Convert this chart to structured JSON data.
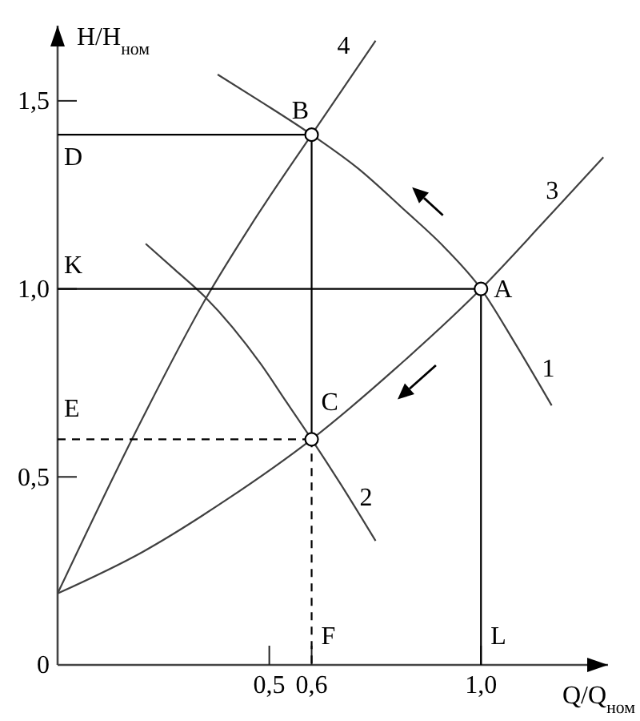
{
  "chart_data": {
    "type": "line",
    "xlabel": "Q/Q$_{ном}$",
    "ylabel": "H/H$_{ном}$",
    "xlim": [
      0,
      1.3
    ],
    "ylim": [
      0,
      1.7
    ],
    "xticks": [
      {
        "value": 0.5,
        "label": "0,5"
      },
      {
        "value": 0.6,
        "label": "0,6"
      },
      {
        "value": 1.0,
        "label": "1,0"
      }
    ],
    "yticks": [
      0,
      {
        "value": 0.5,
        "label": "0,5"
      },
      {
        "value": 1.0,
        "label": "1,0"
      },
      {
        "value": 1.5,
        "label": "1,5"
      }
    ],
    "series": [
      {
        "name": "1",
        "type": "line",
        "color": "#404040",
        "x": [
          0.378,
          0.477,
          0.6,
          0.71,
          0.819,
          0.914,
          1.0,
          1.078,
          1.167
        ],
        "values": [
          1.57,
          1.5,
          1.41,
          1.32,
          1.21,
          1.11,
          1.0,
          0.86,
          0.69
        ]
      },
      {
        "name": "2",
        "type": "line",
        "color": "#404040",
        "x": [
          0.208,
          0.278,
          0.347,
          0.48,
          0.54,
          0.6,
          0.669,
          0.751
        ],
        "values": [
          1.12,
          1.05,
          0.98,
          0.8,
          0.7,
          0.6,
          0.48,
          0.33
        ]
      },
      {
        "name": "3",
        "type": "line",
        "color": "#404040",
        "x": [
          0,
          0.2,
          0.4,
          0.6,
          0.8,
          1.0,
          1.15,
          1.289
        ],
        "values": [
          0.19,
          0.3,
          0.44,
          0.6,
          0.79,
          1.0,
          1.18,
          1.35
        ]
      },
      {
        "name": "4",
        "type": "line",
        "color": "#404040",
        "x": [
          0,
          0.18,
          0.353,
          0.457,
          0.6,
          0.751
        ],
        "values": [
          0.19,
          0.61,
          0.98,
          1.17,
          1.41,
          1.66
        ]
      },
      {
        "type": "line",
        "color": "#000000",
        "x": [
          0,
          0.6
        ],
        "values": [
          1.41,
          1.41
        ]
      },
      {
        "type": "line",
        "color": "#000000",
        "x": [
          0,
          1.0
        ],
        "values": [
          1.0,
          1.0
        ]
      },
      {
        "type": "line",
        "color": "#000000",
        "line_style": "dashed",
        "x": [
          0,
          0.6
        ],
        "values": [
          0.6,
          0.6
        ]
      },
      {
        "type": "line",
        "color": "#000000",
        "x": [
          0.6,
          0.6
        ],
        "values": [
          1.41,
          0.6
        ]
      },
      {
        "type": "line",
        "color": "#000000",
        "line_style": "dashed",
        "x": [
          0.6,
          0.6
        ],
        "values": [
          0.6,
          0
        ]
      },
      {
        "type": "line",
        "color": "#000000",
        "x": [
          1.0,
          1.0
        ],
        "values": [
          1.0,
          0
        ]
      },
      {
        "type": "scatter",
        "color": "#000000",
        "marker": "circle",
        "x": [
          1.0,
          0.6,
          0.6
        ],
        "values": [
          1.0,
          1.41,
          0.6
        ]
      }
    ],
    "annotations": [
      {
        "text": "A",
        "x": 1.0,
        "y": 1.0
      },
      {
        "text": "B",
        "x": 0.6,
        "y": 1.41
      },
      {
        "text": "C",
        "x": 0.6,
        "y": 0.6
      },
      {
        "text": "D",
        "x": 0,
        "y": 1.41
      },
      {
        "text": "K",
        "x": 0,
        "y": 1.0
      },
      {
        "text": "E",
        "x": 0,
        "y": 0.6
      },
      {
        "text": "F",
        "x": 0.6,
        "y": 0
      },
      {
        "text": "L",
        "x": 1.0,
        "y": 0
      }
    ]
  }
}
